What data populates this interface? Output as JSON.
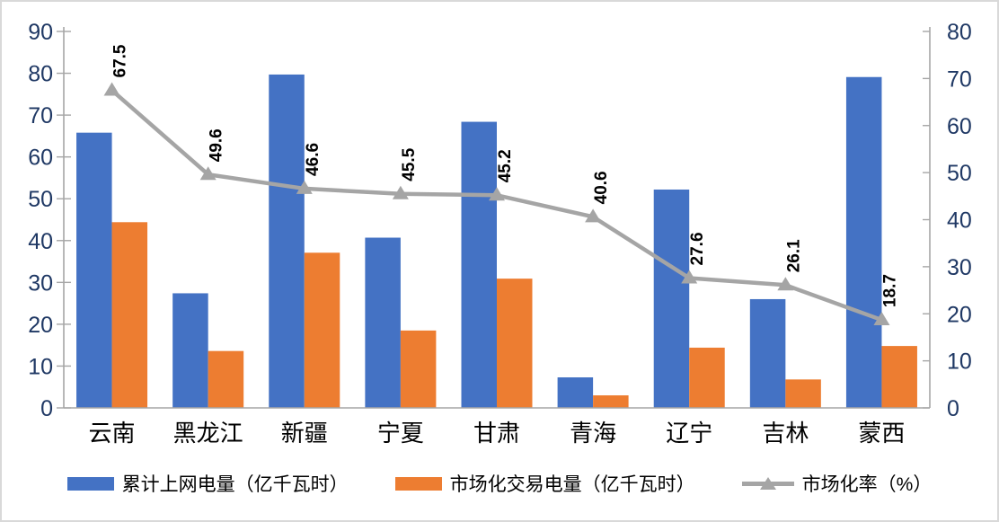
{
  "chart_data": {
    "type": "combo-bar-line",
    "title": "",
    "categories": [
      "云南",
      "黑龙江",
      "新疆",
      "宁夏",
      "甘肃",
      "青海",
      "辽宁",
      "吉林",
      "蒙西"
    ],
    "series": [
      {
        "name": "累计上网电量（亿千瓦时）",
        "type": "bar",
        "axis": "left",
        "color": "#4472C4",
        "values": [
          65.8,
          27.4,
          79.7,
          40.7,
          68.4,
          7.3,
          52.2,
          26.0,
          79.1
        ]
      },
      {
        "name": "市场化交易电量（亿千瓦时）",
        "type": "bar",
        "axis": "left",
        "color": "#ED7D31",
        "values": [
          44.4,
          13.6,
          37.1,
          18.5,
          30.9,
          3.0,
          14.4,
          6.8,
          14.8
        ]
      },
      {
        "name": "市场化率（%）",
        "type": "line",
        "axis": "right",
        "color": "#A5A5A5",
        "values": [
          67.5,
          49.6,
          46.6,
          45.5,
          45.2,
          40.6,
          27.6,
          26.1,
          18.7
        ],
        "labels": [
          "67.5",
          "49.6",
          "46.6",
          "45.5",
          "45.2",
          "40.6",
          "27.6",
          "26.1",
          "18.7"
        ]
      }
    ],
    "left_axis": {
      "min": 0,
      "max": 90,
      "step": 10,
      "tick_labels": [
        "0",
        "10",
        "20",
        "30",
        "40",
        "50",
        "60",
        "70",
        "80",
        "90"
      ]
    },
    "right_axis": {
      "min": 0,
      "max": 80,
      "step": 10,
      "tick_labels": [
        "0",
        "10",
        "20",
        "30",
        "40",
        "50",
        "60",
        "70",
        "80"
      ]
    },
    "grid": false,
    "legend_position": "bottom",
    "styles": {
      "axis_line_color": "#A6A6A6",
      "tick_label_color": "#1F3864",
      "category_label_color": "#000000",
      "data_label_color": "#000000",
      "border_color": "#D9D9D9",
      "background": "#FFFFFF"
    }
  }
}
